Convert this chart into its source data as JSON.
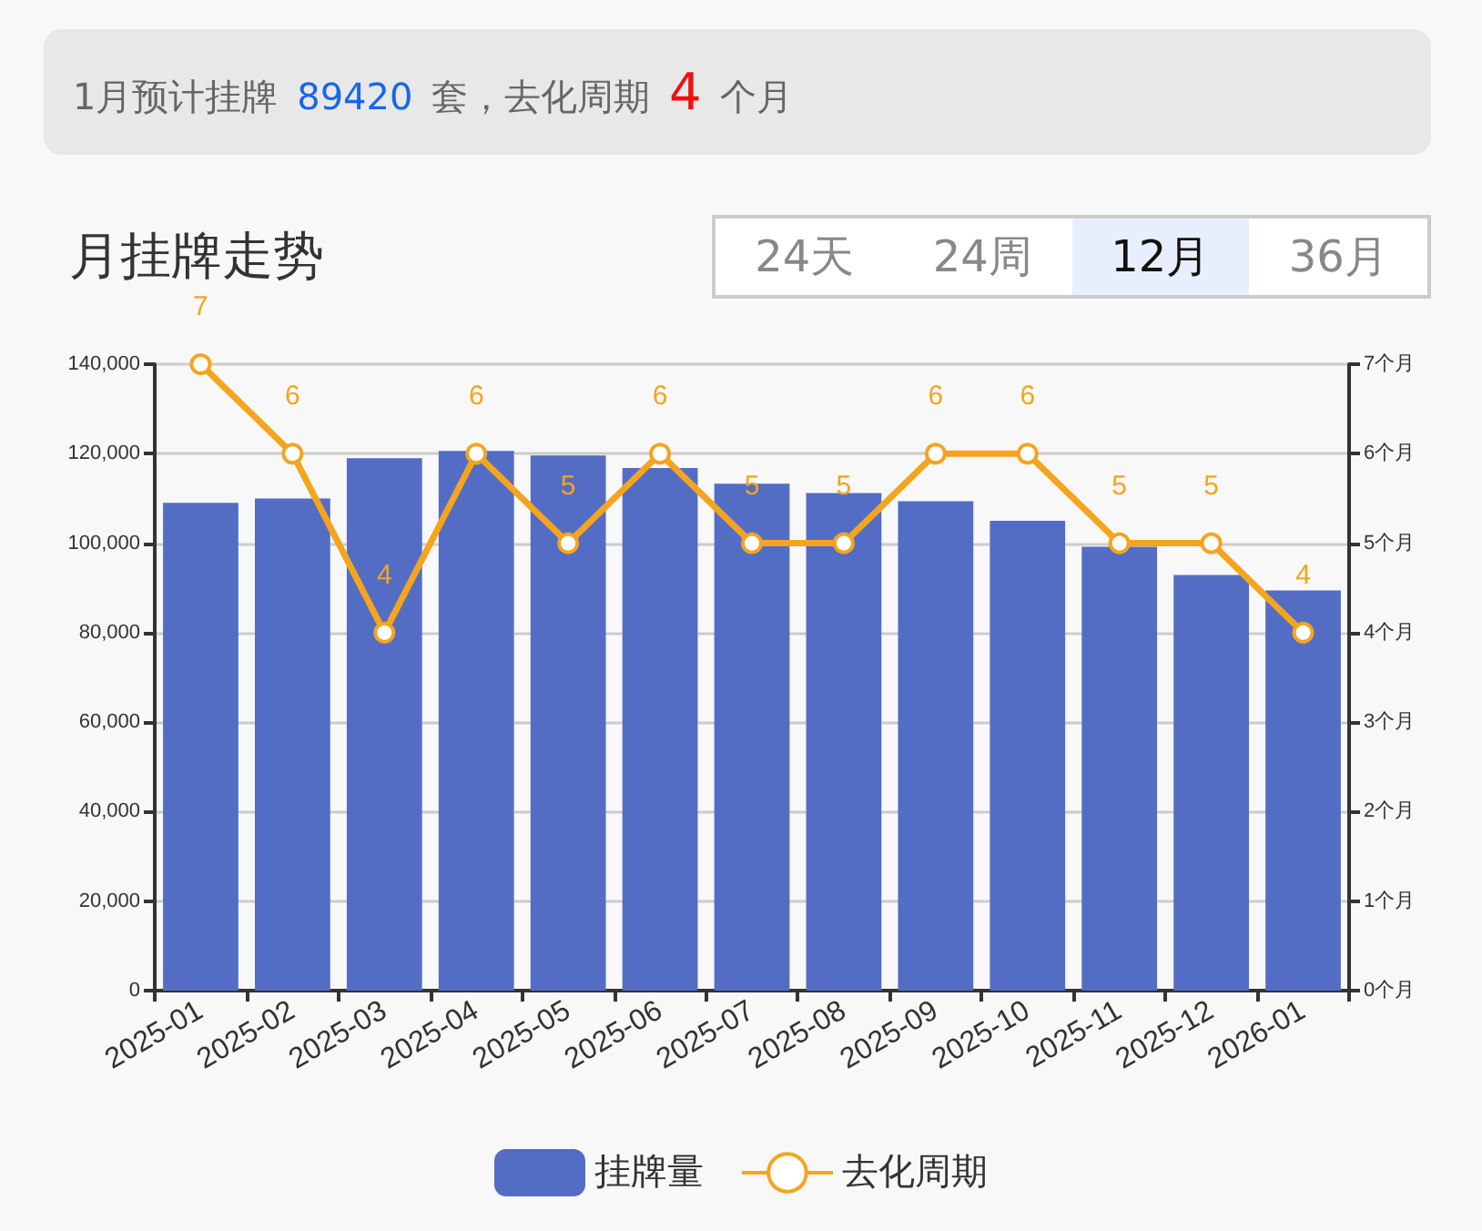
{
  "chart_data": {
    "type": "bar",
    "title": "月挂牌走势",
    "subtitle": "1月预计挂牌 89420 套，去化周期 4 个月",
    "annotations": [
      "24天",
      "24周",
      "12月",
      "36月"
    ],
    "categories": [
      "2025-01",
      "2025-02",
      "2025-03",
      "2025-04",
      "2025-05",
      "2025-06",
      "2025-07",
      "2025-08",
      "2025-09",
      "2025-10",
      "2025-11",
      "2025-12",
      "2026-01"
    ],
    "series": [
      {
        "name": "挂牌量",
        "color": "#536dc4",
        "values": [
          109000,
          110000,
          119000,
          120600,
          119600,
          116800,
          113300,
          111200,
          109400,
          105000,
          99200,
          92900,
          89420
        ]
      },
      {
        "name": "去化周期",
        "type": "line",
        "axis": "y2",
        "color": "#f5a41d",
        "marker": "circle",
        "data_labels": true,
        "values": [
          7,
          6,
          4,
          6,
          5,
          6,
          5,
          5,
          6,
          6,
          5,
          5,
          4
        ]
      }
    ],
    "ylim": [
      0,
      140000
    ],
    "yticks": [
      {
        "value": 0,
        "label": "0"
      },
      {
        "value": 20000,
        "label": "20,000"
      },
      {
        "value": 40000,
        "label": "40,000"
      },
      {
        "value": 60000,
        "label": "60,000"
      },
      {
        "value": 80000,
        "label": "80,000"
      },
      {
        "value": 100000,
        "label": "100,000"
      },
      {
        "value": 120000,
        "label": "120,000"
      },
      {
        "value": 140000,
        "label": "140,000"
      }
    ],
    "y2lim": [
      0,
      7
    ],
    "y2ticks": [
      {
        "value": 0,
        "label": "0个月"
      },
      {
        "value": 1,
        "label": "1个月"
      },
      {
        "value": 2,
        "label": "2个月"
      },
      {
        "value": 3,
        "label": "3个月"
      },
      {
        "value": 4,
        "label": "4个月"
      },
      {
        "value": 5,
        "label": "5个月"
      },
      {
        "value": 6,
        "label": "6个月"
      },
      {
        "value": 7,
        "label": "7个月"
      }
    ],
    "grid": "y",
    "legend": "bottom"
  }
}
